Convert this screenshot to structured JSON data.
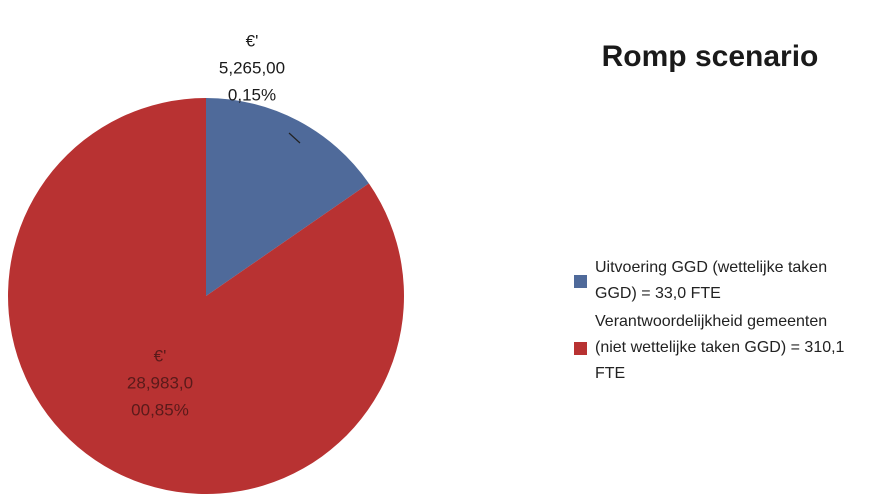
{
  "chart_data": {
    "type": "pie",
    "title": "Romp scenario",
    "series": [
      {
        "name": "Uitvoering GGD (wettelijke taken GGD) = 33,0 FTE",
        "color": "#4f6a9a"
      },
      {
        "name": "Verantwoordelijkheid gemeenten (niet wettelijke taken GGD) = 310,1 FTE",
        "color": "#b83232"
      }
    ],
    "values": [
      5265,
      28983
    ],
    "value_labels": [
      [
        "€'",
        "5,265,00",
        "0,15%"
      ],
      [
        "€'",
        "28,983,0",
        "00,85%"
      ]
    ],
    "legend": "right"
  }
}
